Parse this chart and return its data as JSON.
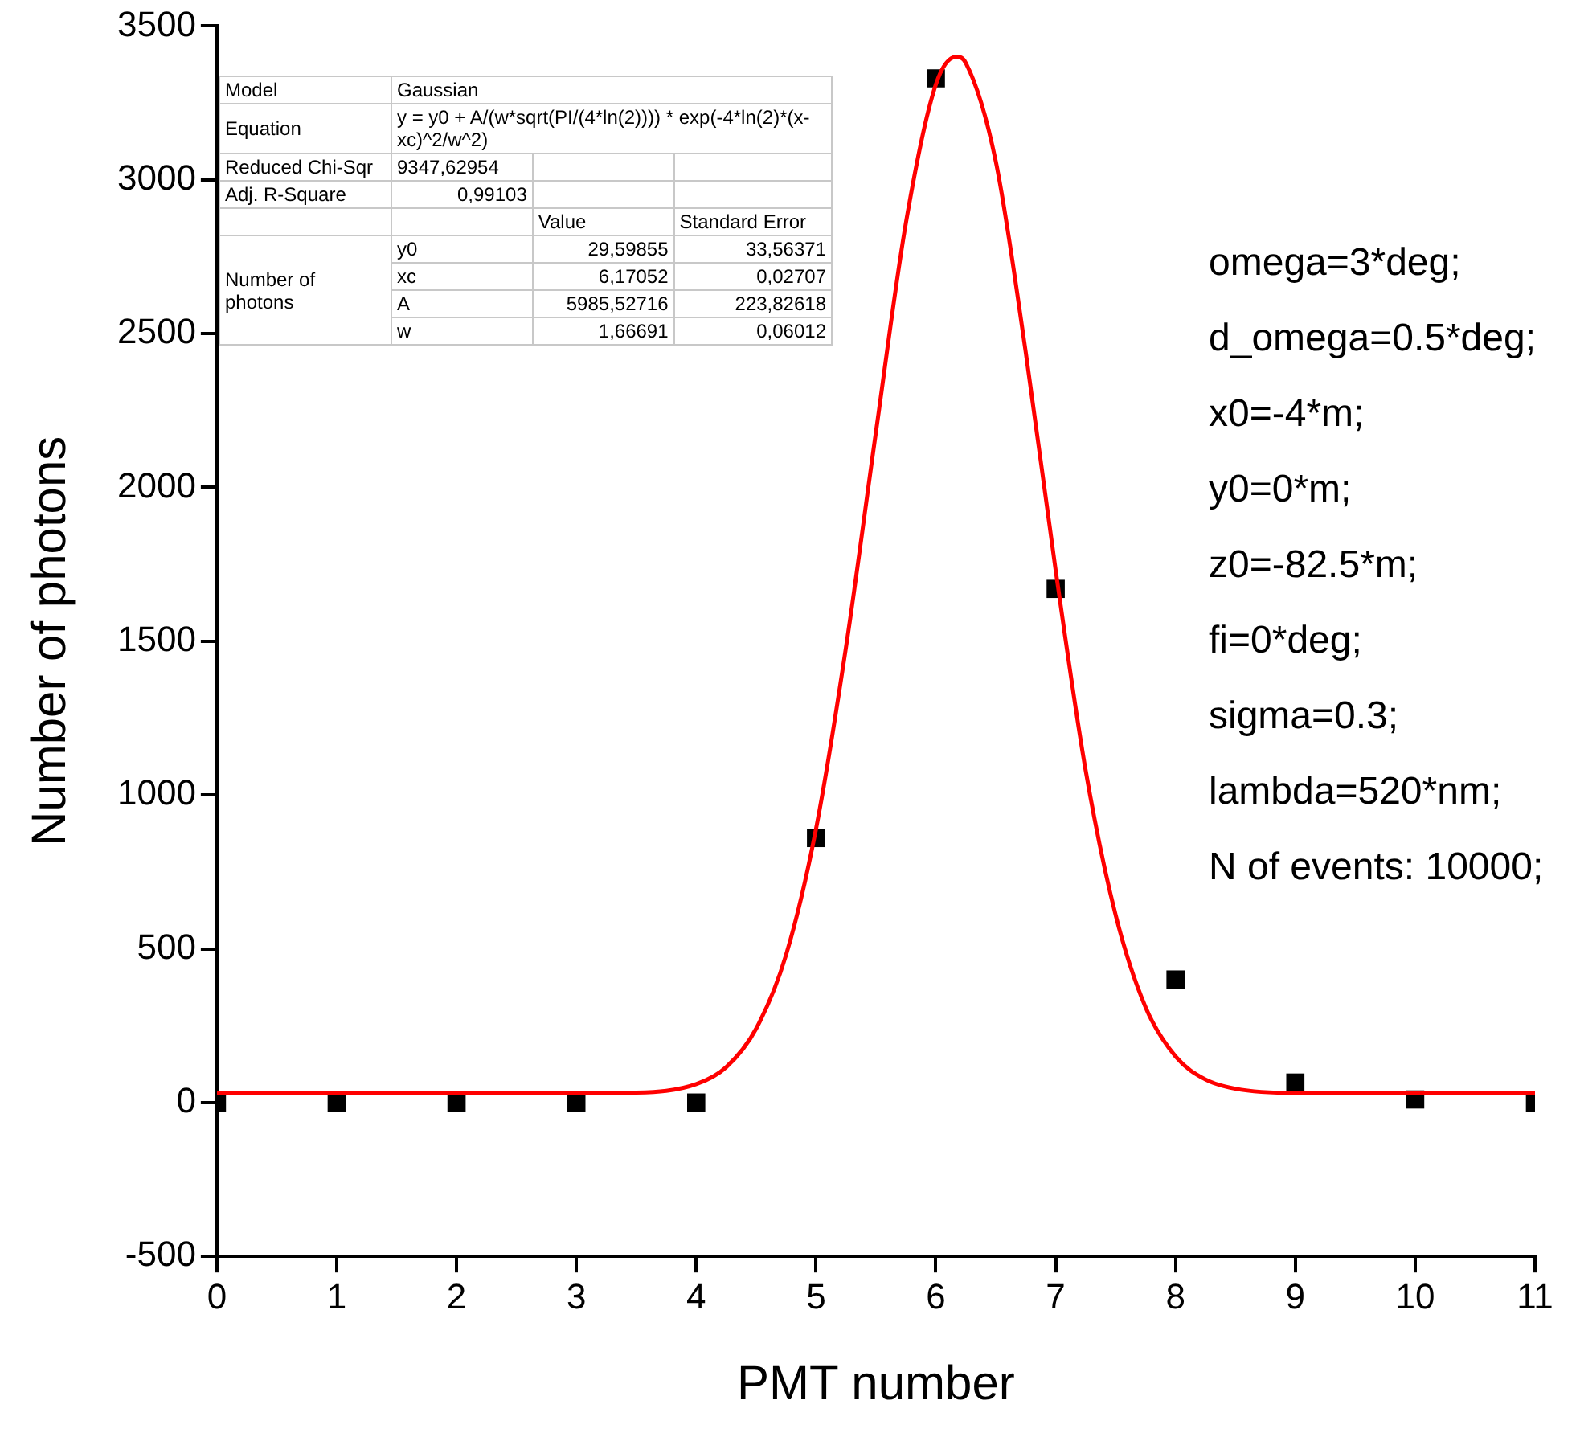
{
  "chart_data": {
    "type": "scatter",
    "xlabel": "PMT number",
    "ylabel": "Number of photons",
    "xlim": [
      0,
      11
    ],
    "xticks": [
      0,
      1,
      2,
      3,
      4,
      5,
      6,
      7,
      8,
      9,
      10,
      11
    ],
    "ylim": [
      -500,
      3500
    ],
    "yticks": [
      -500,
      0,
      500,
      1000,
      1500,
      2000,
      2500,
      3000,
      3500
    ],
    "grid": false,
    "legend": false,
    "series": [
      {
        "type": "line",
        "color": "#ff0000",
        "marker": "none",
        "line_style": "solid",
        "x": [
          0,
          3,
          3.5,
          4,
          4.25,
          4.5,
          4.75,
          5,
          5.25,
          5.5,
          5.75,
          6,
          6.17,
          6.25,
          6.5,
          6.75,
          7,
          7.25,
          7.5,
          7.75,
          8,
          8.25,
          8.5,
          9,
          11
        ],
        "values": [
          30,
          30,
          32,
          60,
          115,
          240,
          480,
          890,
          1480,
          2180,
          2860,
          3310,
          3400,
          3380,
          3060,
          2440,
          1730,
          1080,
          610,
          310,
          150,
          75,
          45,
          31,
          30
        ]
      },
      {
        "type": "scatter",
        "color": "#000000",
        "marker": "square",
        "x": [
          0,
          1,
          2,
          3,
          4,
          5,
          6,
          7,
          8,
          9,
          10,
          11
        ],
        "values": [
          0,
          0,
          0,
          0,
          0,
          860,
          3330,
          1670,
          400,
          65,
          10,
          0
        ]
      }
    ],
    "annotations": [
      "Model",
      "Gaussian",
      "Equation",
      "y = y0 + A/(w*sqrt(PI/(4*ln(2)))) * exp(-4*ln(2)*(x-xc)^2/w^2)",
      "Reduced Chi-Sqr",
      "9347,62954",
      "Adj. R-Square",
      "0,99103",
      "Value",
      "Standard Error",
      "Number of photons",
      "y0",
      "29,59855",
      "33,56371",
      "xc",
      "6,17052",
      "0,02707",
      "A",
      "5985,52716",
      "223,82618",
      "w",
      "1,66691",
      "0,06012",
      "omega=3*deg;",
      "d_omega=0.5*deg;",
      "x0=-4*m;",
      "y0=0*m;",
      "z0=-82.5*m;",
      "fi=0*deg;",
      "sigma=0.3;",
      "lambda=520*nm;",
      "N of events: 10000;"
    ]
  }
}
